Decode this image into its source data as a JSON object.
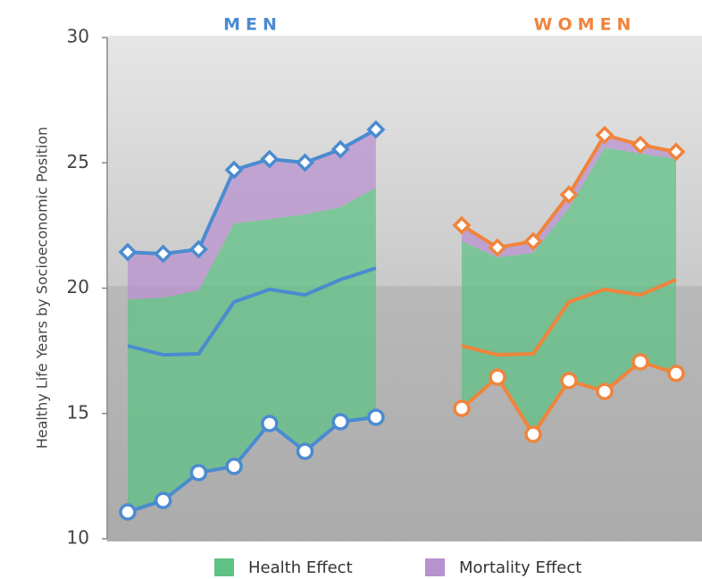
{
  "chart_data": [
    {
      "type": "line",
      "title": "MEN",
      "color": "#4a8bd0",
      "ylabel": "Healthy Life Years by Socioeconomic Position",
      "ylim": [
        10,
        30
      ],
      "yticks": [
        10,
        15,
        20,
        25,
        30
      ],
      "upper": [
        21.44,
        21.37,
        21.55,
        24.72,
        25.15,
        25.01,
        25.54,
        26.33
      ],
      "health_top": [
        19.55,
        19.62,
        19.91,
        22.58,
        22.76,
        22.94,
        23.23,
        24.01
      ],
      "middle": [
        17.7,
        17.34,
        17.38,
        19.45,
        19.95,
        19.73,
        20.34,
        20.8
      ],
      "lower": [
        11.07,
        11.53,
        12.64,
        12.89,
        14.6,
        13.49,
        14.67,
        14.85
      ]
    },
    {
      "type": "line",
      "title": "WOMEN",
      "color": "#f0843c",
      "upper": [
        22.51,
        21.62,
        21.87,
        23.73,
        26.11,
        25.72,
        25.44
      ],
      "health_top": [
        21.87,
        21.23,
        21.41,
        23.19,
        25.61,
        25.37,
        25.15
      ],
      "middle": [
        17.7,
        17.34,
        17.38,
        19.45,
        19.95,
        19.73,
        20.34
      ],
      "lower": [
        15.2,
        16.45,
        14.17,
        16.31,
        15.88,
        17.06,
        16.6
      ]
    }
  ],
  "legend": [
    {
      "name": "Health Effect",
      "color": "#5fc285"
    },
    {
      "name": "Mortality Effect",
      "color": "#b892cf"
    }
  ]
}
